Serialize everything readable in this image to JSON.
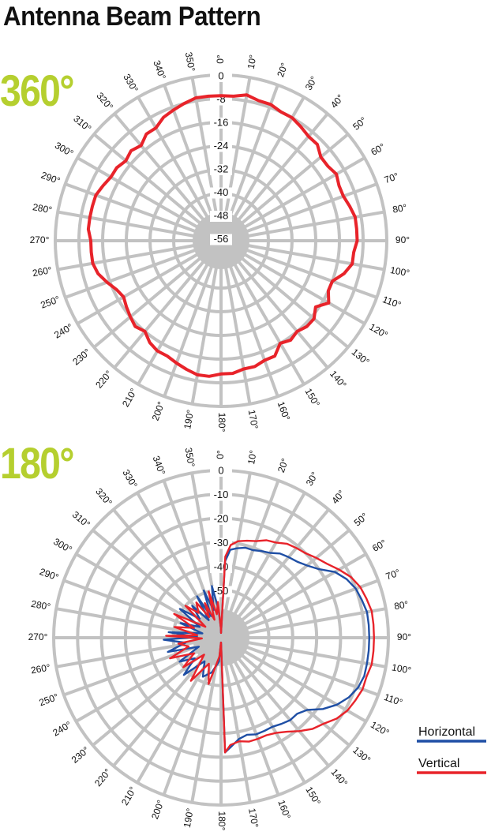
{
  "title": "Antenna Beam Pattern",
  "colors": {
    "title": "#111111",
    "tag": "#b5cf2f",
    "grid": "#c2c2c2",
    "horizontal": "#1f4fa5",
    "vertical": "#e8232a"
  },
  "chart_data": [
    {
      "type": "polar-line",
      "tag": "360°",
      "angle_unit": "deg",
      "angle_direction": "clockwise",
      "zero_at": "top",
      "r_ticks": [
        "0",
        "-8",
        "-16",
        "-24",
        "-32",
        "-40",
        "-48",
        "-56"
      ],
      "r_range": [
        -56,
        0
      ],
      "angle_ticks": [
        "0°",
        "10°",
        "20°",
        "30°",
        "40°",
        "50°",
        "60°",
        "70°",
        "80°",
        "90°",
        "100°",
        "110°",
        "120°",
        "130°",
        "140°",
        "150°",
        "160°",
        "170°",
        "180°",
        "190°",
        "200°",
        "210°",
        "220°",
        "230°",
        "240°",
        "250°",
        "260°",
        "270°",
        "280°",
        "290°",
        "300°",
        "310°",
        "320°",
        "330°",
        "340°",
        "350°"
      ],
      "series": [
        {
          "color": "#e8232a",
          "angles": [
            0,
            5,
            10,
            15,
            20,
            25,
            30,
            35,
            40,
            45,
            50,
            55,
            60,
            65,
            70,
            75,
            80,
            85,
            90,
            95,
            100,
            105,
            110,
            115,
            120,
            125,
            130,
            135,
            140,
            145,
            150,
            155,
            160,
            165,
            170,
            175,
            180,
            185,
            190,
            195,
            200,
            205,
            210,
            215,
            220,
            225,
            230,
            235,
            240,
            245,
            250,
            255,
            260,
            265,
            270,
            275,
            280,
            285,
            290,
            295,
            300,
            305,
            310,
            315,
            320,
            325,
            330,
            335,
            340,
            345,
            350,
            355
          ],
          "values": [
            -7,
            -7,
            -6,
            -7,
            -7,
            -8,
            -8,
            -9,
            -10,
            -10,
            -12,
            -12,
            -11,
            -12,
            -12,
            -11,
            -10,
            -10,
            -10,
            -11,
            -11,
            -13,
            -16,
            -16,
            -14,
            -17,
            -15,
            -15,
            -16,
            -15,
            -16,
            -13,
            -13,
            -12,
            -12,
            -11,
            -11,
            -10,
            -10,
            -11,
            -12,
            -13,
            -13,
            -14,
            -16,
            -15,
            -16,
            -17,
            -18,
            -17,
            -15,
            -13,
            -12,
            -12,
            -12,
            -11,
            -11,
            -11,
            -11,
            -12,
            -13,
            -13,
            -14,
            -13,
            -14,
            -12,
            -12,
            -10,
            -9,
            -8,
            -7,
            -7
          ]
        }
      ]
    },
    {
      "type": "polar-line",
      "tag": "180°",
      "angle_unit": "deg",
      "angle_direction": "clockwise",
      "zero_at": "top",
      "r_ticks": [
        "0",
        "-10",
        "-20",
        "-30",
        "-40",
        "-50"
      ],
      "r_range": [
        -70,
        0
      ],
      "angle_ticks": [
        "0°",
        "10°",
        "20°",
        "30°",
        "40°",
        "50°",
        "60°",
        "70°",
        "80°",
        "90°",
        "100°",
        "110°",
        "120°",
        "130°",
        "140°",
        "150°",
        "160°",
        "170°",
        "180°",
        "190°",
        "200°",
        "210°",
        "220°",
        "230°",
        "240°",
        "250°",
        "260°",
        "270°",
        "280°",
        "290°",
        "300°",
        "310°",
        "320°",
        "330°",
        "340°",
        "350°"
      ],
      "legend": {
        "position": "right",
        "entries": [
          {
            "name": "Horizontal",
            "color": "#1f4fa5"
          },
          {
            "name": "Vertical",
            "color": "#e8232a"
          }
        ]
      },
      "series": [
        {
          "name": "Horizontal",
          "color": "#1f4fa5",
          "angles": [
            0,
            3,
            6,
            10,
            15,
            20,
            25,
            30,
            35,
            40,
            45,
            50,
            55,
            60,
            65,
            70,
            75,
            80,
            85,
            90,
            95,
            100,
            105,
            110,
            115,
            120,
            125,
            130,
            135,
            140,
            145,
            150,
            155,
            160,
            165,
            170,
            175,
            178,
            180,
            181,
            185,
            195,
            205,
            215,
            225,
            232,
            240,
            248,
            255,
            262,
            268,
            272,
            276,
            283,
            290,
            297,
            305,
            312,
            318,
            325,
            330,
            335,
            340,
            345,
            350,
            355,
            359
          ],
          "values": [
            -68,
            -38,
            -33,
            -32,
            -31,
            -31,
            -30,
            -29,
            -27,
            -26,
            -25,
            -23,
            -20,
            -15,
            -12,
            -10,
            -9,
            -8,
            -8,
            -8,
            -8,
            -8,
            -8,
            -9,
            -11,
            -14,
            -18,
            -23,
            -25,
            -25,
            -26,
            -27,
            -27,
            -27,
            -28,
            -27,
            -24,
            -22,
            -68,
            -68,
            -60,
            -55,
            -52,
            -58,
            -48,
            -56,
            -50,
            -60,
            -47,
            -55,
            -46,
            -60,
            -48,
            -62,
            -52,
            -60,
            -49,
            -58,
            -52,
            -61,
            -50,
            -60,
            -49,
            -58,
            -48,
            -58,
            -66
          ]
        },
        {
          "name": "Vertical",
          "color": "#e8232a",
          "angles": [
            0,
            3,
            6,
            10,
            15,
            20,
            25,
            30,
            35,
            40,
            45,
            50,
            55,
            60,
            65,
            70,
            75,
            80,
            85,
            90,
            95,
            100,
            105,
            110,
            115,
            120,
            125,
            130,
            135,
            140,
            145,
            150,
            155,
            160,
            165,
            170,
            175,
            178,
            180,
            181,
            185,
            195,
            205,
            215,
            225,
            232,
            240,
            248,
            255,
            262,
            268,
            272,
            276,
            283,
            290,
            297,
            305,
            312,
            318,
            325,
            330,
            335,
            340,
            345,
            350,
            355,
            359
          ],
          "values": [
            -68,
            -36,
            -31,
            -29,
            -28,
            -27,
            -25,
            -24,
            -22,
            -21,
            -20,
            -18,
            -16,
            -13,
            -10,
            -8,
            -7,
            -6,
            -6,
            -6,
            -6,
            -6,
            -7,
            -7,
            -8,
            -9,
            -11,
            -14,
            -16,
            -19,
            -22,
            -24,
            -25,
            -25,
            -25,
            -26,
            -25,
            -22,
            -68,
            -68,
            -62,
            -50,
            -58,
            -48,
            -60,
            -50,
            -57,
            -47,
            -56,
            -52,
            -62,
            -47,
            -60,
            -50,
            -58,
            -48,
            -62,
            -50,
            -56,
            -52,
            -60,
            -54,
            -62,
            -50,
            -60,
            -55,
            -66
          ]
        }
      ]
    }
  ]
}
